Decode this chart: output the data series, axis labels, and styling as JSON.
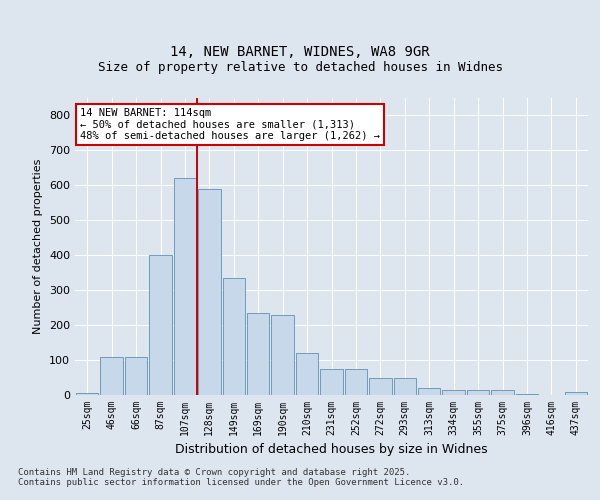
{
  "title_line1": "14, NEW BARNET, WIDNES, WA8 9GR",
  "title_line2": "Size of property relative to detached houses in Widnes",
  "xlabel": "Distribution of detached houses by size in Widnes",
  "ylabel": "Number of detached properties",
  "categories": [
    "25sqm",
    "46sqm",
    "66sqm",
    "87sqm",
    "107sqm",
    "128sqm",
    "149sqm",
    "169sqm",
    "190sqm",
    "210sqm",
    "231sqm",
    "252sqm",
    "272sqm",
    "293sqm",
    "313sqm",
    "334sqm",
    "355sqm",
    "375sqm",
    "396sqm",
    "416sqm",
    "437sqm"
  ],
  "values": [
    5,
    110,
    110,
    400,
    620,
    590,
    335,
    235,
    230,
    120,
    75,
    75,
    50,
    50,
    20,
    15,
    15,
    15,
    2,
    0,
    8
  ],
  "bar_color": "#c8d8eb",
  "bar_edge_color": "#6090b0",
  "vline_x_index": 4.5,
  "vline_color": "#cc0000",
  "annotation_text": "14 NEW BARNET: 114sqm\n← 50% of detached houses are smaller (1,313)\n48% of semi-detached houses are larger (1,262) →",
  "annotation_box_facecolor": "#ffffff",
  "annotation_box_edgecolor": "#cc0000",
  "ylim": [
    0,
    850
  ],
  "yticks": [
    0,
    100,
    200,
    300,
    400,
    500,
    600,
    700,
    800
  ],
  "bg_color": "#dde6ef",
  "plot_bg_color": "#dde6ef",
  "footer": "Contains HM Land Registry data © Crown copyright and database right 2025.\nContains public sector information licensed under the Open Government Licence v3.0.",
  "title_fontsize": 10,
  "subtitle_fontsize": 9,
  "annotation_fontsize": 7.5,
  "grid_color": "#ffffff",
  "ylabel_fontsize": 8,
  "xlabel_fontsize": 9
}
